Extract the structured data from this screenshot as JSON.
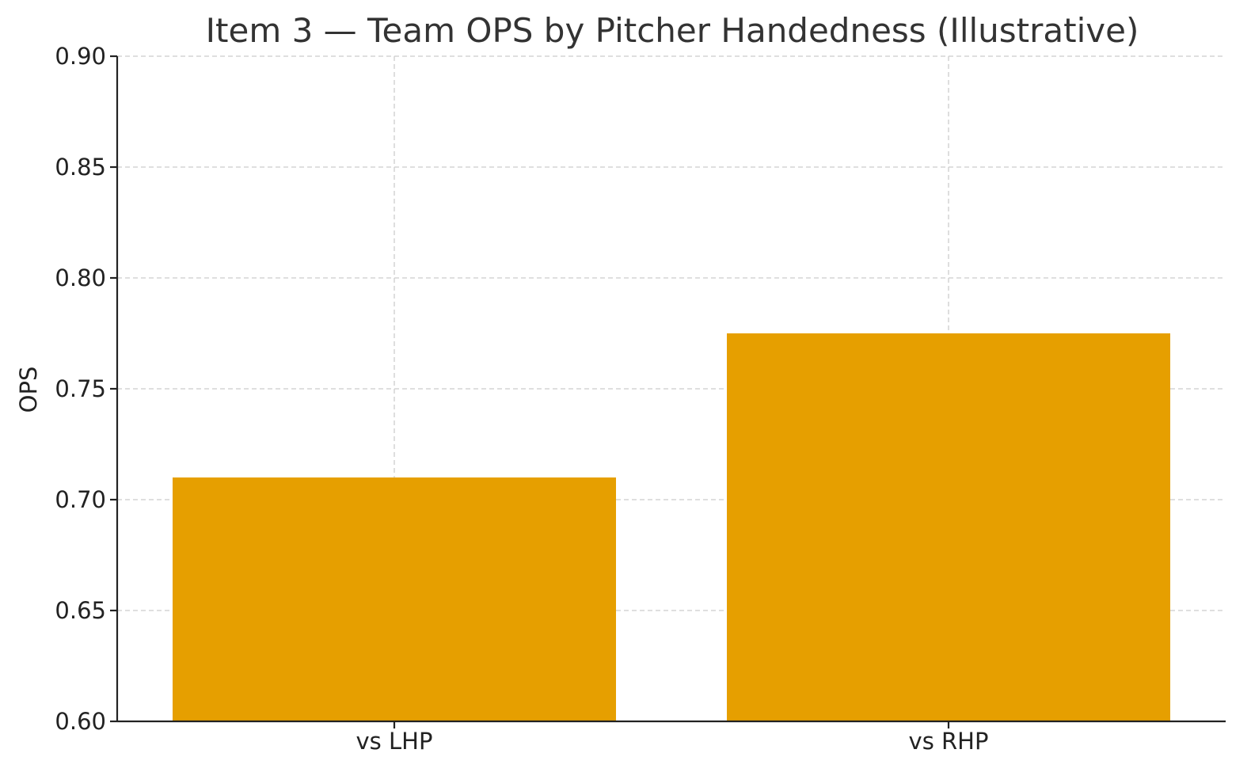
{
  "chart_data": {
    "type": "bar",
    "title": "Item 3 — Team OPS by Pitcher Handedness (Illustrative)",
    "xlabel": "",
    "ylabel": "OPS",
    "categories": [
      "vs LHP",
      "vs RHP"
    ],
    "values": [
      0.71,
      0.775
    ],
    "ylim": [
      0.6,
      0.9
    ],
    "yticks": [
      "0.60",
      "0.65",
      "0.70",
      "0.75",
      "0.80",
      "0.85",
      "0.90"
    ],
    "bar_color": "#E69F00",
    "grid": true,
    "legend": "none"
  }
}
